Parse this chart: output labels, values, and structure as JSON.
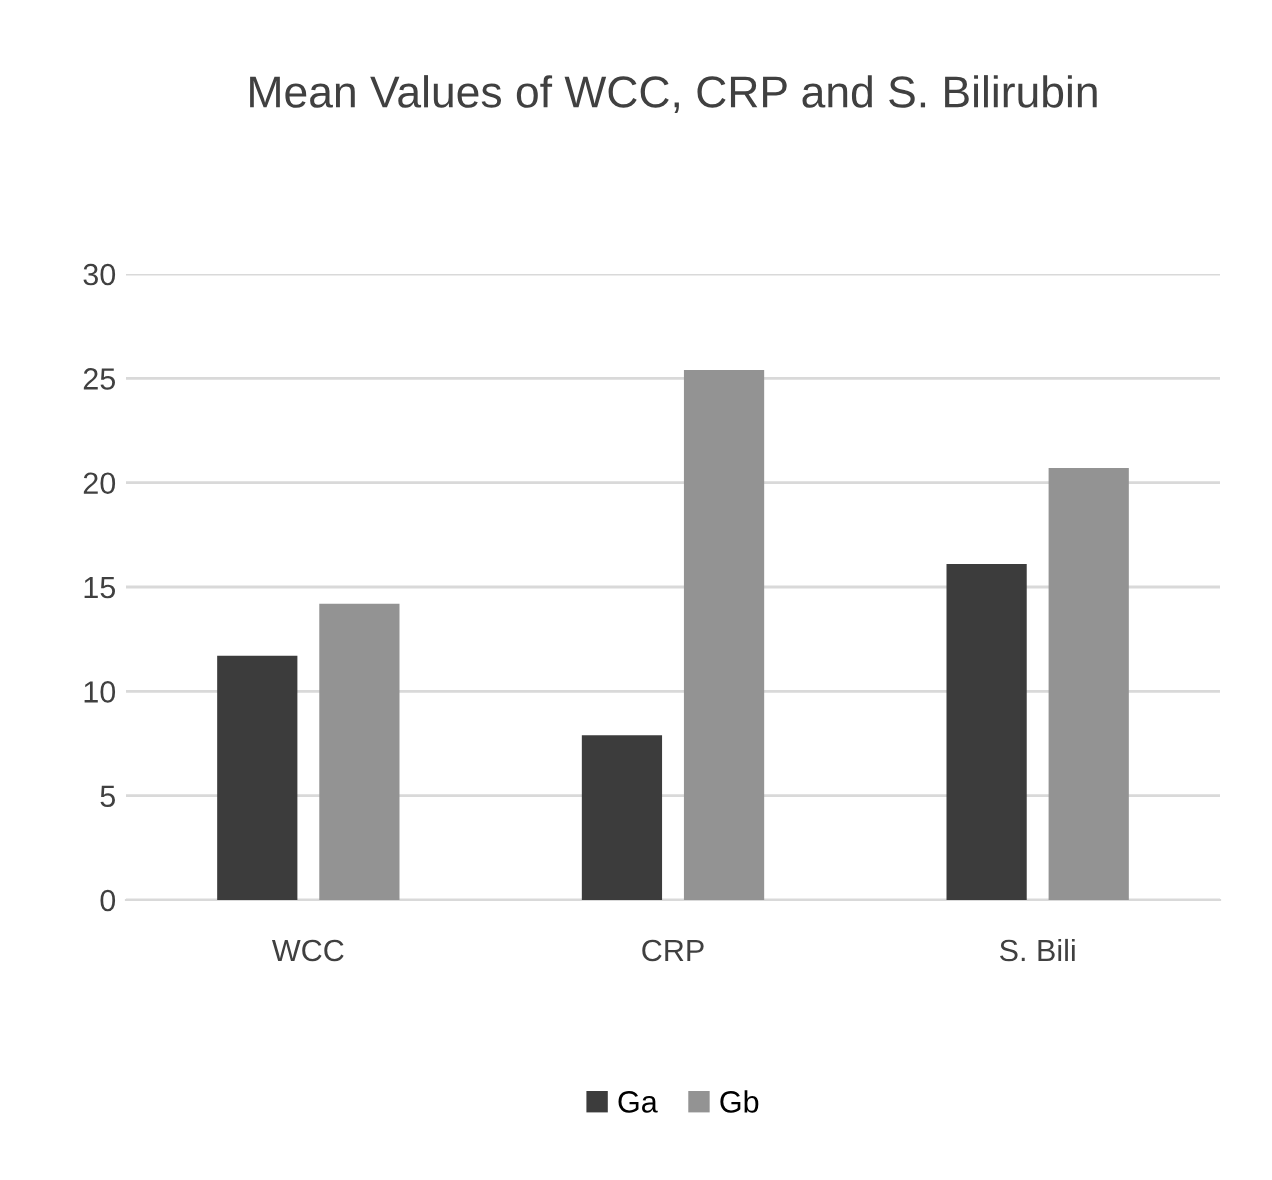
{
  "chart_data": {
    "type": "bar",
    "title": "Mean Values of WCC, CRP and S. Bilirubin",
    "categories": [
      "WCC",
      "CRP",
      "S. Bili"
    ],
    "series": [
      {
        "name": "Ga",
        "color": "#3c3c3c",
        "values": [
          11.7,
          7.9,
          16.1
        ]
      },
      {
        "name": "Gb",
        "color": "#939393",
        "values": [
          14.2,
          25.4,
          20.7
        ]
      }
    ],
    "ylim": [
      0,
      30
    ],
    "yticks": [
      0,
      5,
      10,
      15,
      20,
      25,
      30
    ],
    "grid": "y",
    "legend": "bottom"
  }
}
